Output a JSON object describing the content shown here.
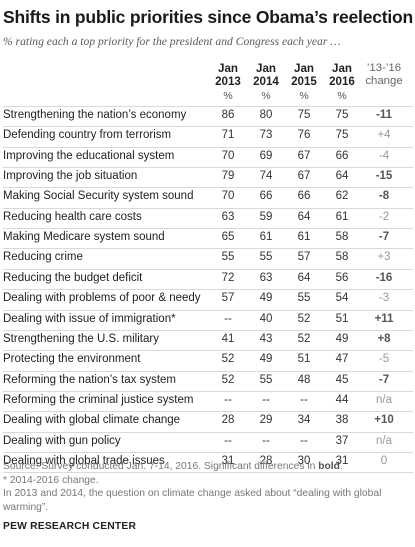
{
  "chart_data": {
    "type": "table",
    "title": "Shifts in public priorities since Obama’s reelection",
    "subtitle": "% rating each a top priority for the president and Congress each year …",
    "columns": [
      {
        "line1": "Jan",
        "line2": "2013"
      },
      {
        "line1": "Jan",
        "line2": "2014"
      },
      {
        "line1": "Jan",
        "line2": "2015"
      },
      {
        "line1": "Jan",
        "line2": "2016"
      }
    ],
    "change_header": {
      "line1": "’13-’16",
      "line2": "change"
    },
    "percent_unit": "%",
    "rows": [
      {
        "label": "Strengthening the nation’s economy",
        "values": [
          "86",
          "80",
          "75",
          "75"
        ],
        "change": "-11",
        "significant": true
      },
      {
        "label": "Defending country from terrorism",
        "values": [
          "71",
          "73",
          "76",
          "75"
        ],
        "change": "+4",
        "significant": false
      },
      {
        "label": "Improving the educational system",
        "values": [
          "70",
          "69",
          "67",
          "66"
        ],
        "change": "-4",
        "significant": false
      },
      {
        "label": "Improving the job situation",
        "values": [
          "79",
          "74",
          "67",
          "64"
        ],
        "change": "-15",
        "significant": true
      },
      {
        "label": "Making Social Security system sound",
        "values": [
          "70",
          "66",
          "66",
          "62"
        ],
        "change": "-8",
        "significant": true
      },
      {
        "label": "Reducing health care costs",
        "values": [
          "63",
          "59",
          "64",
          "61"
        ],
        "change": "-2",
        "significant": false
      },
      {
        "label": "Making Medicare system sound",
        "values": [
          "65",
          "61",
          "61",
          "58"
        ],
        "change": "-7",
        "significant": true
      },
      {
        "label": "Reducing crime",
        "values": [
          "55",
          "55",
          "57",
          "58"
        ],
        "change": "+3",
        "significant": false
      },
      {
        "label": "Reducing the budget deficit",
        "values": [
          "72",
          "63",
          "64",
          "56"
        ],
        "change": "-16",
        "significant": true
      },
      {
        "label": "Dealing with problems of poor & needy",
        "values": [
          "57",
          "49",
          "55",
          "54"
        ],
        "change": "-3",
        "significant": false
      },
      {
        "label": "Dealing with issue of immigration*",
        "values": [
          "--",
          "40",
          "52",
          "51"
        ],
        "change": "+11",
        "significant": true
      },
      {
        "label": "Strengthening the U.S. military",
        "values": [
          "41",
          "43",
          "52",
          "49"
        ],
        "change": "+8",
        "significant": true
      },
      {
        "label": "Protecting the environment",
        "values": [
          "52",
          "49",
          "51",
          "47"
        ],
        "change": "-5",
        "significant": false
      },
      {
        "label": "Reforming the nation’s tax system",
        "values": [
          "52",
          "55",
          "48",
          "45"
        ],
        "change": "-7",
        "significant": true
      },
      {
        "label": "Reforming the criminal justice system",
        "values": [
          "--",
          "--",
          "--",
          "44"
        ],
        "change": "n/a",
        "significant": false
      },
      {
        "label": "Dealing with global climate change",
        "values": [
          "28",
          "29",
          "34",
          "38"
        ],
        "change": "+10",
        "significant": true
      },
      {
        "label": "Dealing with gun policy",
        "values": [
          "--",
          "--",
          "--",
          "37"
        ],
        "change": "n/a",
        "significant": false
      },
      {
        "label": "Dealing with global trade issues",
        "values": [
          "31",
          "28",
          "30",
          "31"
        ],
        "change": "0",
        "significant": false
      }
    ],
    "colors": {
      "significant_change": "#555555",
      "nonsignificant_change": "#999999",
      "divider": "#d9d9d9"
    }
  },
  "notes": {
    "source_prefix": "Source: Survey conducted Jan. 7-14, 2016. Significant differences in ",
    "source_bold": "bold",
    "source_suffix": ".",
    "footnote": "* 2014-2016 change.",
    "climate_note": "In 2013 and 2014, the question on climate change asked about “dealing with global warming”."
  },
  "brand": "PEW RESEARCH CENTER"
}
